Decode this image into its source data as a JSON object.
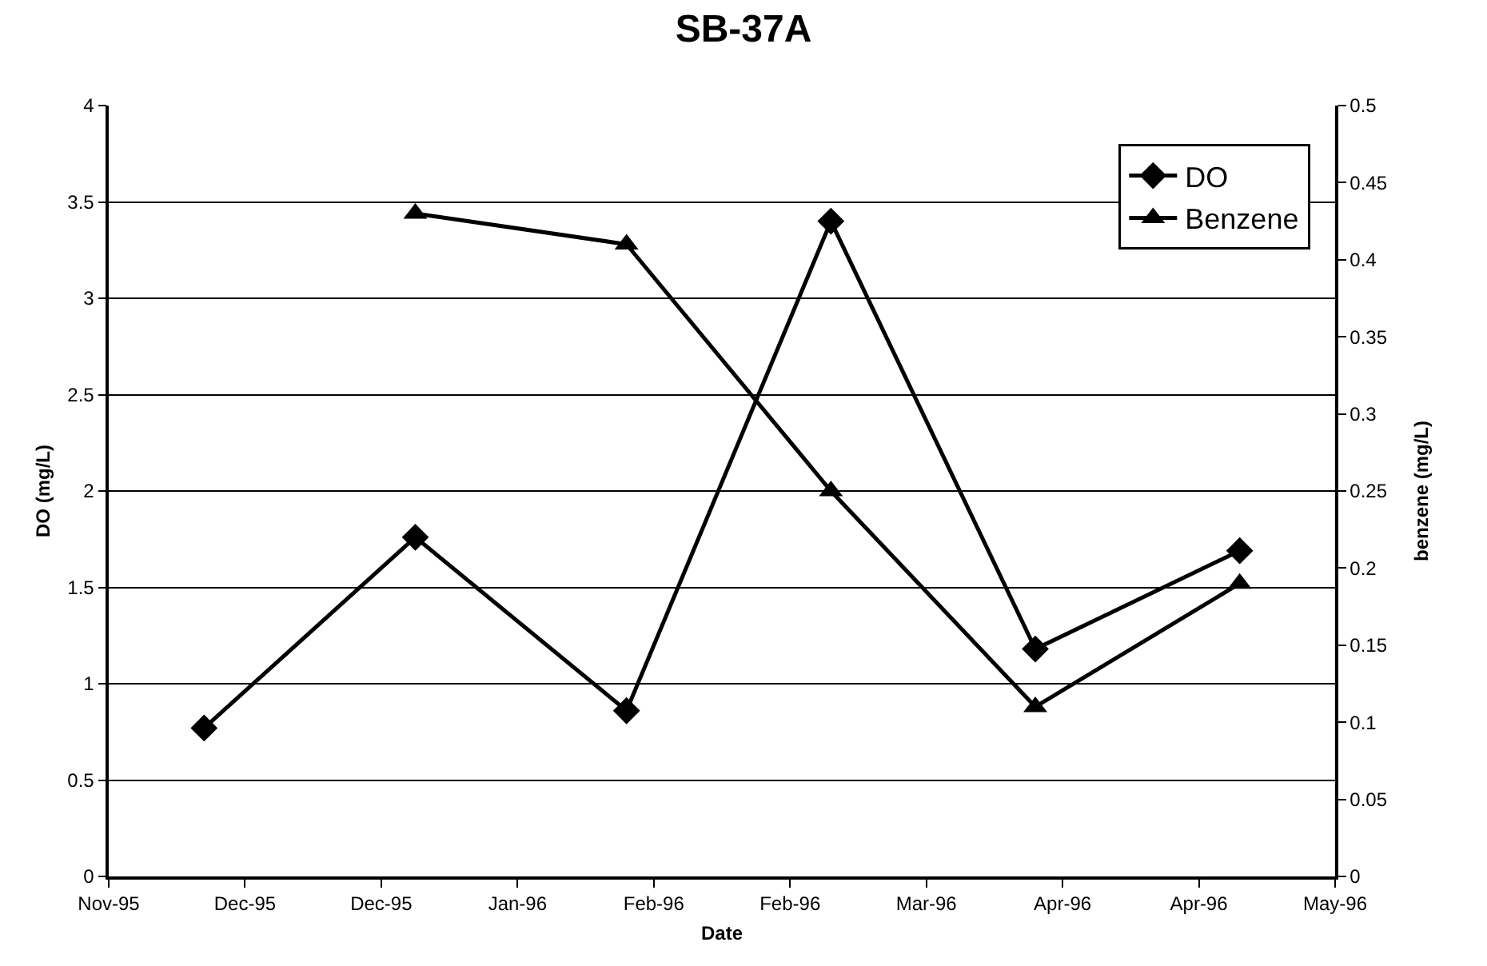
{
  "chart_data": {
    "type": "line",
    "title": "SB-37A",
    "xlabel": "Date",
    "ylabel": "DO (mg/L)",
    "y2label": "benzene (mg/L)",
    "series": [
      {
        "name": "DO",
        "color": "#000000",
        "marker": "diamond",
        "line_style": "solid",
        "x": [
          "1995-11-29",
          "1995-12-30",
          "1996-01-30",
          "1996-02-29",
          "1996-03-30",
          "1996-04-29"
        ],
        "values": [
          0.77,
          1.76,
          0.86,
          3.4,
          1.18,
          1.69
        ]
      },
      {
        "name": "Benzene",
        "color": "#000000",
        "marker": "triangle",
        "line_style": "solid",
        "axis": "y2",
        "x": [
          "1995-12-30",
          "1996-01-30",
          "1996-02-29",
          "1996-03-30",
          "1996-04-29"
        ],
        "values": [
          0.43,
          0.41,
          0.25,
          0.11,
          0.19
        ]
      }
    ],
    "xlim": [
      "1995-11-15",
      "1996-05-13"
    ],
    "xticks": [
      {
        "value": "1995-11-15",
        "label": "Nov-95"
      },
      {
        "value": "1995-12-05",
        "label": "Dec-95"
      },
      {
        "value": "1995-12-25",
        "label": "Dec-95"
      },
      {
        "value": "1996-01-14",
        "label": "Jan-96"
      },
      {
        "value": "1996-02-03",
        "label": "Feb-96"
      },
      {
        "value": "1996-02-23",
        "label": "Feb-96"
      },
      {
        "value": "1996-03-14",
        "label": "Mar-96"
      },
      {
        "value": "1996-04-03",
        "label": "Apr-96"
      },
      {
        "value": "1996-04-23",
        "label": "Apr-96"
      },
      {
        "value": "1996-05-13",
        "label": "May-96"
      }
    ],
    "ylim": [
      0,
      4
    ],
    "yticks": [
      0,
      0.5,
      1,
      1.5,
      2,
      2.5,
      3,
      3.5,
      4
    ],
    "y2lim": [
      0,
      0.5
    ],
    "y2ticks": [
      0,
      0.05,
      0.1,
      0.15,
      0.2,
      0.25,
      0.3,
      0.35,
      0.4,
      0.45,
      0.5
    ],
    "grid": "y",
    "legend": "top right"
  }
}
